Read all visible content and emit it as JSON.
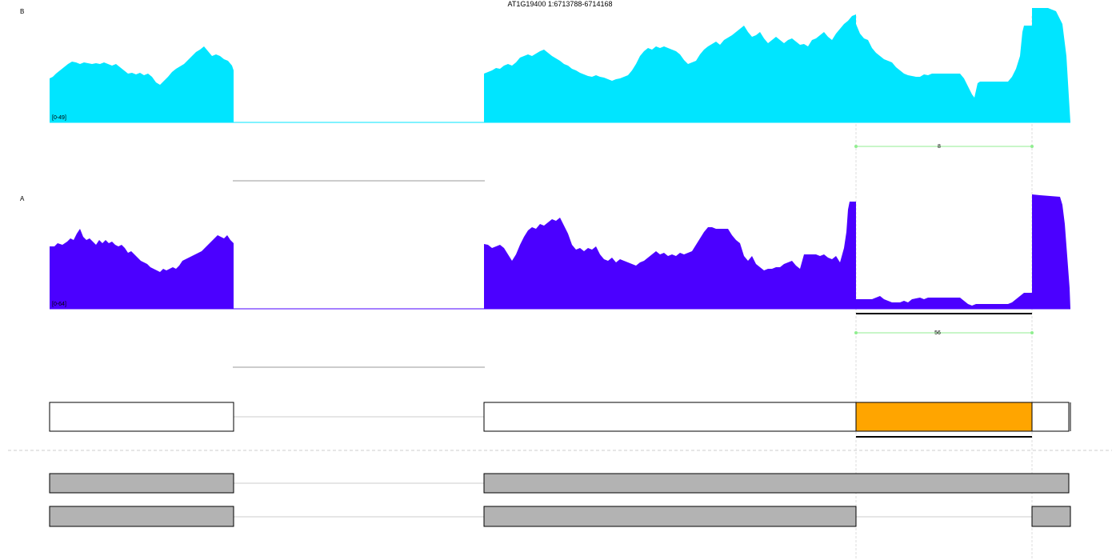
{
  "title": "AT1G19400 1:6713788-6714168",
  "colors": {
    "track_B": "#00E5FF",
    "track_A": "#4B00FF",
    "junction_arc": "#90EE90",
    "highlight_exon": "#FFA500",
    "intron_line": "#CCCCCC",
    "transcript_fill": "#B3B3B3",
    "guide_line": "#DDDDDD"
  },
  "tracks": [
    {
      "label": "B",
      "range_label": "[0-49]",
      "color": "#00E5FF",
      "junction": {
        "count_label": "8"
      }
    },
    {
      "label": "A",
      "range_label": "[0-64]",
      "color": "#4B00FF",
      "junction": {
        "count_label": "56"
      }
    }
  ],
  "gene_model": {
    "highlighted_exon": "orange",
    "reference_transcripts": 2
  }
}
